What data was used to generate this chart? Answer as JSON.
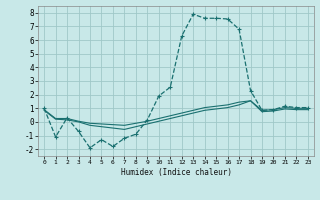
{
  "title": "",
  "xlabel": "Humidex (Indice chaleur)",
  "ylabel": "",
  "bg_color": "#c8e8e8",
  "grid_color": "#a0c8c8",
  "line_color": "#1a7070",
  "xlim": [
    -0.5,
    23.5
  ],
  "ylim": [
    -2.5,
    8.5
  ],
  "xticks": [
    0,
    1,
    2,
    3,
    4,
    5,
    6,
    7,
    8,
    9,
    10,
    11,
    12,
    13,
    14,
    15,
    16,
    17,
    18,
    19,
    20,
    21,
    22,
    23
  ],
  "yticks": [
    -2,
    -1,
    0,
    1,
    2,
    3,
    4,
    5,
    6,
    7,
    8
  ],
  "line1_x": [
    0,
    1,
    2,
    3,
    4,
    5,
    6,
    7,
    8,
    9,
    10,
    11,
    12,
    13,
    14,
    15,
    16,
    17,
    18,
    19,
    20,
    21,
    22,
    23
  ],
  "line1_y": [
    1.0,
    -1.1,
    0.3,
    -0.7,
    -1.9,
    -1.3,
    -1.8,
    -1.2,
    -0.9,
    0.15,
    1.9,
    2.55,
    6.3,
    7.9,
    7.6,
    7.6,
    7.55,
    6.8,
    2.3,
    0.85,
    0.9,
    1.15,
    1.05,
    1.05
  ],
  "line2_x": [
    0,
    1,
    2,
    3,
    4,
    5,
    6,
    7,
    8,
    9,
    10,
    11,
    12,
    13,
    14,
    15,
    16,
    17,
    18,
    19,
    20,
    21,
    22,
    23
  ],
  "line2_y": [
    0.9,
    0.25,
    0.25,
    0.05,
    -0.1,
    -0.15,
    -0.2,
    -0.25,
    -0.1,
    0.05,
    0.25,
    0.45,
    0.65,
    0.85,
    1.05,
    1.15,
    1.25,
    1.45,
    1.55,
    0.85,
    0.9,
    1.05,
    1.0,
    1.0
  ],
  "line3_x": [
    0,
    1,
    2,
    3,
    4,
    5,
    6,
    7,
    8,
    9,
    10,
    11,
    12,
    13,
    14,
    15,
    16,
    17,
    18,
    19,
    20,
    21,
    22,
    23
  ],
  "line3_y": [
    0.85,
    0.2,
    0.15,
    0.0,
    -0.25,
    -0.35,
    -0.45,
    -0.55,
    -0.35,
    -0.15,
    0.05,
    0.25,
    0.45,
    0.65,
    0.85,
    0.95,
    1.05,
    1.25,
    1.55,
    0.75,
    0.8,
    0.95,
    0.9,
    0.9
  ]
}
